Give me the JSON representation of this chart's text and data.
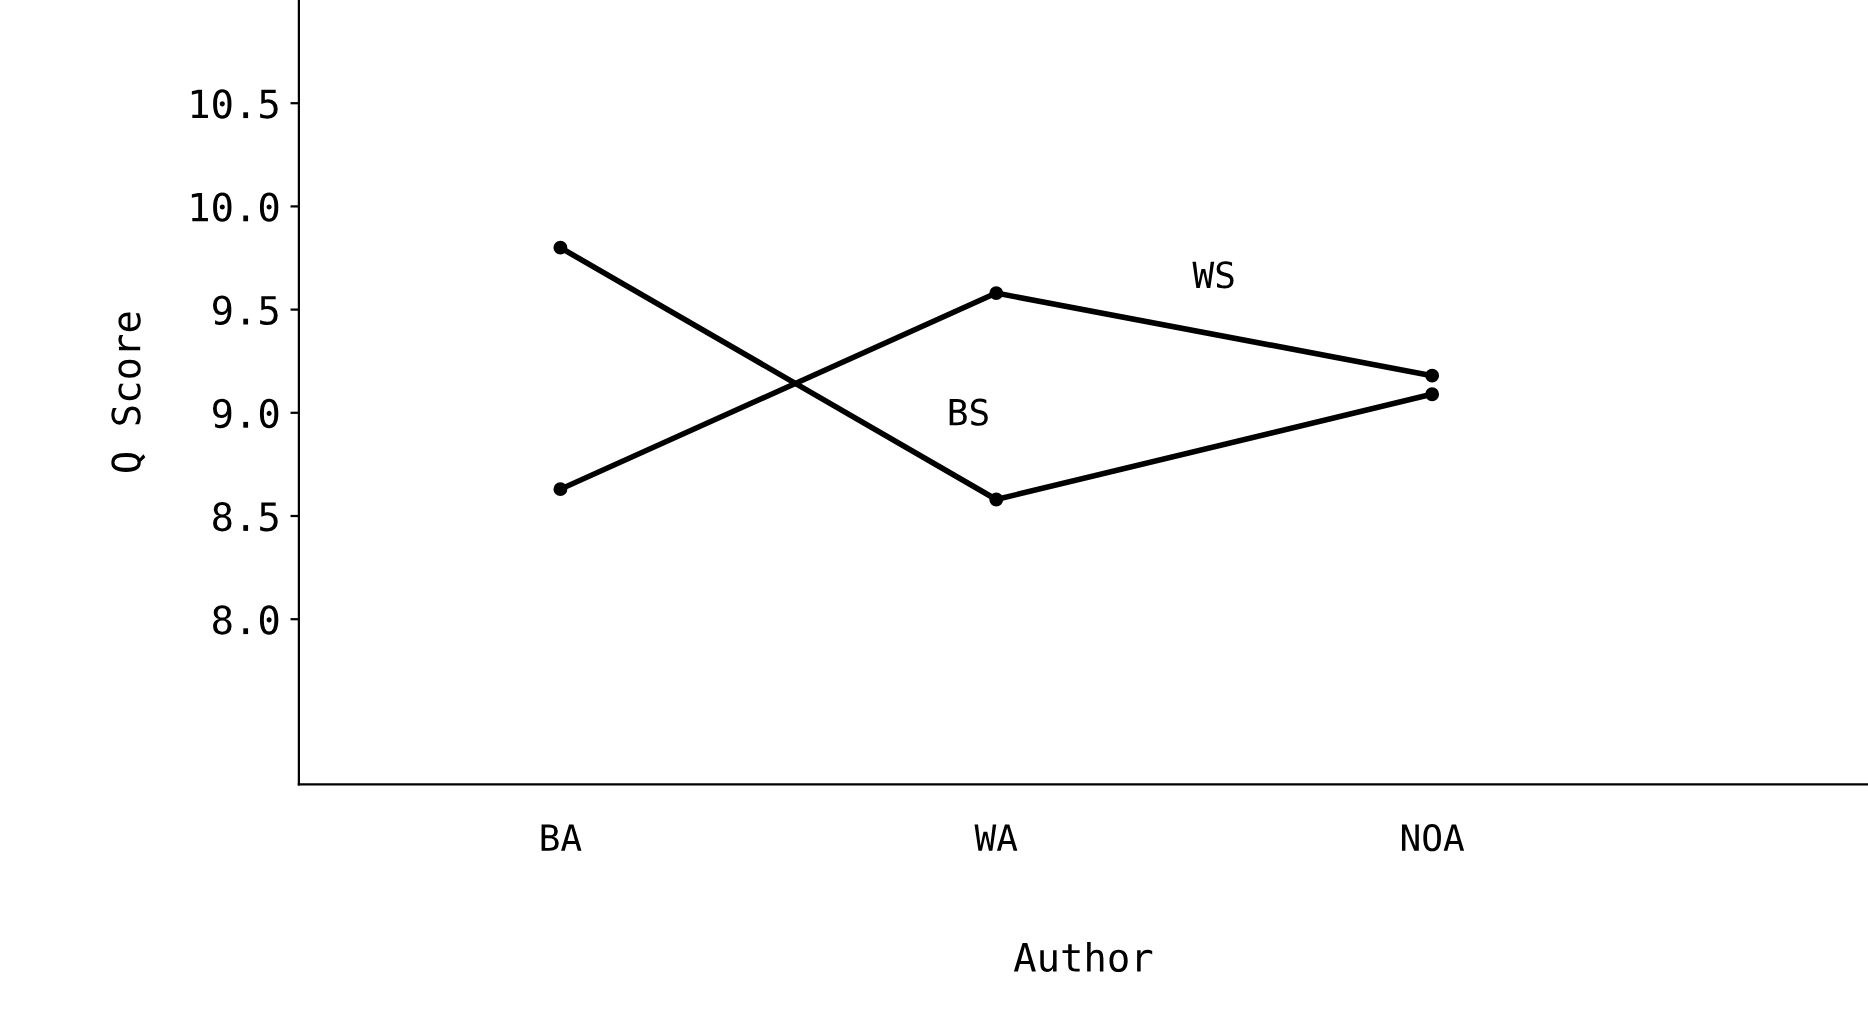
{
  "chart_data": {
    "type": "line",
    "xlabel": "Author",
    "ylabel": "Q Score",
    "categories": [
      "BA",
      "WA",
      "NOA"
    ],
    "series": [
      {
        "name": "WS",
        "color": "#000000",
        "values": [
          8.63,
          9.58,
          9.18
        ]
      },
      {
        "name": "BS",
        "color": "#000000",
        "values": [
          9.8,
          8.58,
          9.09
        ]
      }
    ],
    "ylim": [
      7.2,
      11.0
    ],
    "yticks": [
      {
        "value": 8,
        "label": "8.0"
      },
      8.5,
      {
        "value": 9,
        "label": "9.0"
      },
      9.5,
      {
        "value": 10,
        "label": "10.0"
      },
      10.5
    ],
    "marker": "circle",
    "line_style": "solid",
    "grid": false,
    "legend": false
  }
}
